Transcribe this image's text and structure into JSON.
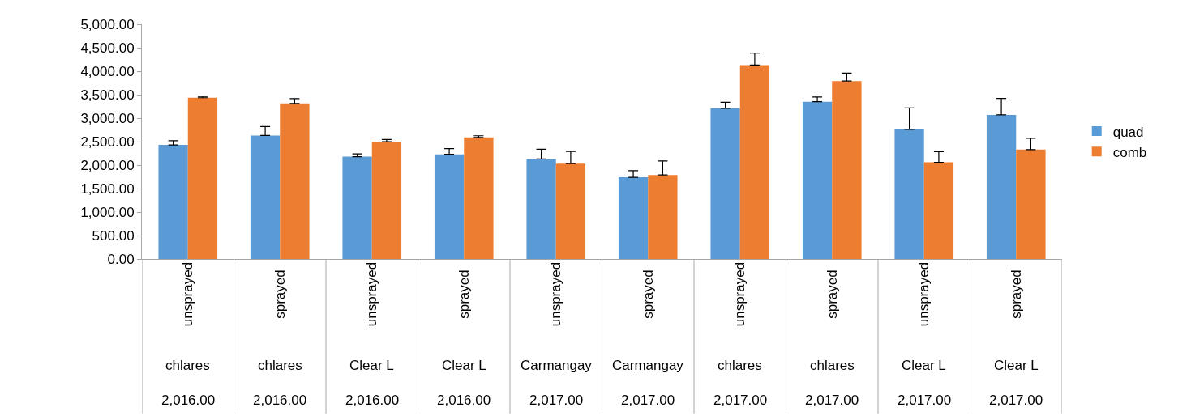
{
  "chart_data": {
    "type": "bar",
    "categories": [
      "unsprayed\nchlares\n2,016.00",
      "sprayed\nchlares\n2,016.00",
      "unsprayed\nClear L\n2,016.00",
      "sprayed\nClear L\n2,016.00",
      "unsprayed\nCarmangay\n2,017.00",
      "sprayed\nCarmangay\n2,017.00",
      "unsprayed\nchlares\n2,017.00",
      "sprayed\nchlares\n2,017.00",
      "unsprayed\nClear L\n2,017.00",
      "sprayed\nClear L\n2,017.00"
    ],
    "series": [
      {
        "name": "quad",
        "color": "#5b9bd5",
        "values": [
          2430,
          2630,
          2180,
          2230,
          2130,
          1740,
          3210,
          3350,
          2760,
          3070
        ],
        "errors": [
          90,
          190,
          60,
          120,
          210,
          140,
          130,
          100,
          460,
          350
        ]
      },
      {
        "name": "comb",
        "color": "#ed7d31",
        "values": [
          3435,
          3315,
          2500,
          2590,
          2030,
          1790,
          4130,
          3790,
          2060,
          2330
        ],
        "errors": [
          30,
          100,
          45,
          35,
          260,
          300,
          255,
          170,
          225,
          240
        ]
      }
    ],
    "ylim": [
      0,
      5000
    ],
    "yticks": [
      {
        "value": 0,
        "label": "0.00"
      },
      {
        "value": 500,
        "label": "500.00"
      },
      {
        "value": 1000,
        "label": "1,000.00"
      },
      {
        "value": 1500,
        "label": "1,500.00"
      },
      {
        "value": 2000,
        "label": "2,000.00"
      },
      {
        "value": 2500,
        "label": "2,500.00"
      },
      {
        "value": 3000,
        "label": "3,000.00"
      },
      {
        "value": 3500,
        "label": "3,500.00"
      },
      {
        "value": 4000,
        "label": "4,000.00"
      },
      {
        "value": 4500,
        "label": "4,500.00"
      },
      {
        "value": 5000,
        "label": "5,000.00"
      }
    ],
    "grid": false,
    "legend": "right"
  }
}
